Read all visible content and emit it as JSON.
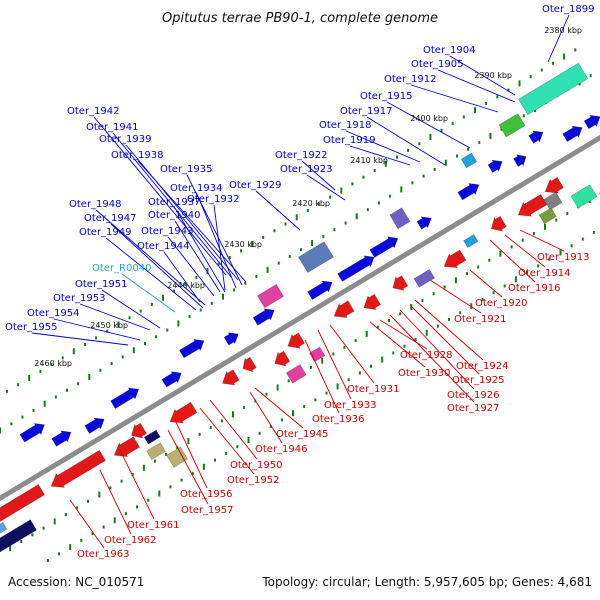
{
  "title": "Opitutus terrae PB90-1, complete genome",
  "accession": "Accession: NC_010571",
  "topology": "Topology: circular; Length: 5,957,605 bp; Genes: 4,681",
  "colors": {
    "backbone": "#8c8c8c",
    "forward_label": "#0000cc",
    "reverse_label": "#cc0000",
    "rna_label": "#22aacc",
    "tick": "#1a7a1a"
  },
  "ticks": [
    "2380 kbp",
    "2390 kbp",
    "2400 kbp",
    "2410 kbp",
    "2420 kbp",
    "2430 kbp",
    "2440 kbp",
    "2450 kbp",
    "2460 kbp"
  ],
  "upper_labels": [
    "Oter_1899",
    "Oter_1904",
    "Oter_1905",
    "Oter_1912",
    "Oter_1915",
    "Oter_1917",
    "Oter_1918",
    "Oter_1919",
    "Oter_1922",
    "Oter_1923",
    "Oter_1929",
    "Oter_1942",
    "Oter_1941",
    "Oter_1939",
    "Oter_1938",
    "Oter_1935",
    "Oter_1934",
    "Oter_1937",
    "Oter_1932",
    "Oter_1940",
    "Oter_1943",
    "Oter_1944",
    "Oter_1948",
    "Oter_1947",
    "Oter_1949",
    "Oter_R0040",
    "Oter_1951",
    "Oter_1953",
    "Oter_1954",
    "Oter_1955"
  ],
  "lower_labels": [
    "Oter_1913",
    "Oter_1914",
    "Oter_1916",
    "Oter_1920",
    "Oter_1921",
    "Oter_1924",
    "Oter_1925",
    "Oter_1926",
    "Oter_1927",
    "Oter_1928",
    "Oter_1930",
    "Oter_1931",
    "Oter_1933",
    "Oter_1936",
    "Oter_1945",
    "Oter_1946",
    "Oter_1950",
    "Oter_1952",
    "Oter_1956",
    "Oter_1957",
    "Oter_1961",
    "Oter_1962",
    "Oter_1963"
  ]
}
